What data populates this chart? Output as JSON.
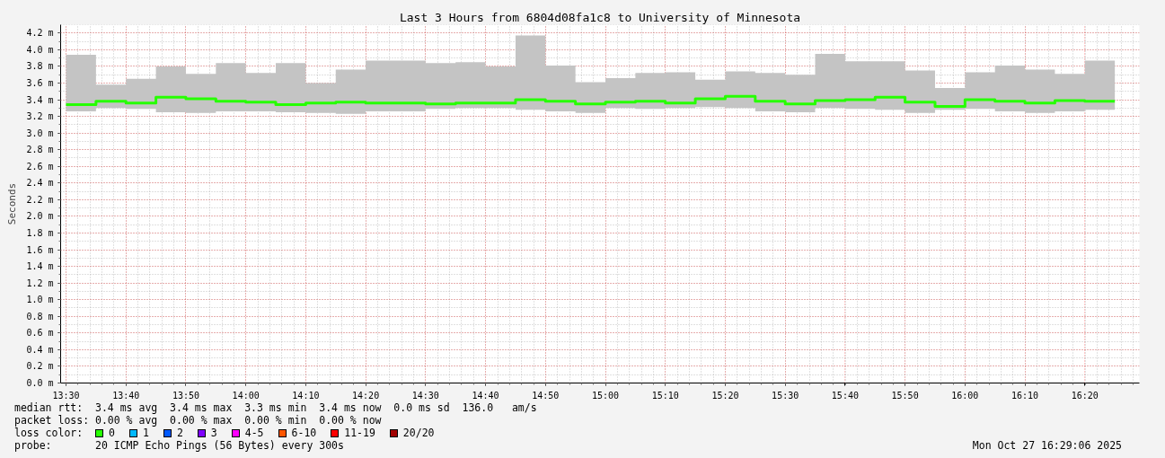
{
  "chart_data": {
    "type": "step",
    "title": "Last 3 Hours from 6804d08fa1c8 to University of Minnesota",
    "ylabel": "Seconds",
    "legend_title": "loss color:",
    "x": [
      13.5,
      13.5833,
      13.6667,
      13.75,
      13.8333,
      13.9167,
      14.0,
      14.0833,
      14.1667,
      14.25,
      14.3333,
      14.4167,
      14.5,
      14.5833,
      14.6667,
      14.75,
      14.8333,
      14.9167,
      15.0,
      15.0833,
      15.1667,
      15.25,
      15.3333,
      15.4167,
      15.5,
      15.5833,
      15.6667,
      15.75,
      15.8333,
      15.9167,
      16.0,
      16.0833,
      16.1667,
      16.25,
      16.3333,
      16.4167
    ],
    "series": [
      {
        "name": "0",
        "color": "#26ff00",
        "values": [
          3.34,
          3.38,
          3.36,
          3.43,
          3.41,
          3.38,
          3.37,
          3.34,
          3.36,
          3.37,
          3.36,
          3.36,
          3.35,
          3.36,
          3.36,
          3.4,
          3.38,
          3.35,
          3.37,
          3.38,
          3.36,
          3.41,
          3.44,
          3.38,
          3.35,
          3.39,
          3.4,
          3.43,
          3.37,
          3.32,
          3.4,
          3.38,
          3.36,
          3.39,
          3.38,
          3.38
        ],
        "lower": [
          3.26,
          3.3,
          3.29,
          3.25,
          3.24,
          3.26,
          3.26,
          3.25,
          3.24,
          3.23,
          3.26,
          3.26,
          3.29,
          3.3,
          3.3,
          3.28,
          3.26,
          3.24,
          3.3,
          3.29,
          3.3,
          3.31,
          3.3,
          3.26,
          3.25,
          3.3,
          3.29,
          3.28,
          3.24,
          3.28,
          3.29,
          3.26,
          3.24,
          3.26,
          3.28,
          3.28
        ],
        "upper": [
          3.94,
          3.58,
          3.65,
          3.8,
          3.71,
          3.84,
          3.72,
          3.84,
          3.6,
          3.76,
          3.87,
          3.87,
          3.84,
          3.85,
          3.8,
          4.17,
          3.81,
          3.61,
          3.66,
          3.72,
          3.73,
          3.64,
          3.74,
          3.72,
          3.7,
          3.95,
          3.86,
          3.86,
          3.75,
          3.54,
          3.73,
          3.81,
          3.76,
          3.71,
          3.87,
          3.87
        ]
      },
      {
        "name": "1",
        "color": "#00b8ff",
        "values": [
          null,
          null,
          null,
          null,
          null,
          null,
          null,
          null,
          null,
          null,
          null,
          null,
          null,
          null,
          null,
          null,
          null,
          null,
          null,
          null,
          null,
          null,
          null,
          null,
          null,
          null,
          null,
          null,
          null,
          null,
          null,
          null,
          null,
          null,
          null,
          null
        ]
      },
      {
        "name": "2",
        "color": "#0059ff",
        "values": [
          null,
          null,
          null,
          null,
          null,
          null,
          null,
          null,
          null,
          null,
          null,
          null,
          null,
          null,
          null,
          null,
          null,
          null,
          null,
          null,
          null,
          null,
          null,
          null,
          null,
          null,
          null,
          null,
          null,
          null,
          null,
          null,
          null,
          null,
          null,
          null
        ]
      },
      {
        "name": "3",
        "color": "#7e00ff",
        "values": [
          null,
          null,
          null,
          null,
          null,
          null,
          null,
          null,
          null,
          null,
          null,
          null,
          null,
          null,
          null,
          null,
          null,
          null,
          null,
          null,
          null,
          null,
          null,
          null,
          null,
          null,
          null,
          null,
          null,
          null,
          null,
          null,
          null,
          null,
          null,
          null
        ]
      },
      {
        "name": "4-5",
        "color": "#ff00ff",
        "values": [
          null,
          null,
          null,
          null,
          null,
          null,
          null,
          null,
          null,
          null,
          null,
          null,
          null,
          null,
          null,
          null,
          null,
          null,
          null,
          null,
          null,
          null,
          null,
          null,
          null,
          null,
          null,
          null,
          null,
          null,
          null,
          null,
          null,
          null,
          null,
          null
        ]
      },
      {
        "name": "6-10",
        "color": "#ff5500",
        "values": [
          null,
          null,
          null,
          null,
          null,
          null,
          null,
          null,
          null,
          null,
          null,
          null,
          null,
          null,
          null,
          null,
          null,
          null,
          null,
          null,
          null,
          null,
          null,
          null,
          null,
          null,
          null,
          null,
          null,
          null,
          null,
          null,
          null,
          null,
          null,
          null
        ]
      },
      {
        "name": "11-19",
        "color": "#ff0000",
        "values": [
          null,
          null,
          null,
          null,
          null,
          null,
          null,
          null,
          null,
          null,
          null,
          null,
          null,
          null,
          null,
          null,
          null,
          null,
          null,
          null,
          null,
          null,
          null,
          null,
          null,
          null,
          null,
          null,
          null,
          null,
          null,
          null,
          null,
          null,
          null,
          null
        ]
      },
      {
        "name": "20/20",
        "color": "#a10000",
        "values": [
          null,
          null,
          null,
          null,
          null,
          null,
          null,
          null,
          null,
          null,
          null,
          null,
          null,
          null,
          null,
          null,
          null,
          null,
          null,
          null,
          null,
          null,
          null,
          null,
          null,
          null,
          null,
          null,
          null,
          null,
          null,
          null,
          null,
          null,
          null,
          null
        ]
      }
    ],
    "xlim": [
      13.485,
      16.485
    ],
    "xticks": [
      {
        "value": 13.5,
        "label": "13:30"
      },
      {
        "value": 13.6667,
        "label": "13:40"
      },
      {
        "value": 13.8333,
        "label": "13:50"
      },
      {
        "value": 14.0,
        "label": "14:00"
      },
      {
        "value": 14.1667,
        "label": "14:10"
      },
      {
        "value": 14.3333,
        "label": "14:20"
      },
      {
        "value": 14.5,
        "label": "14:30"
      },
      {
        "value": 14.6667,
        "label": "14:40"
      },
      {
        "value": 14.8333,
        "label": "14:50"
      },
      {
        "value": 15.0,
        "label": "15:00"
      },
      {
        "value": 15.1667,
        "label": "15:10"
      },
      {
        "value": 15.3333,
        "label": "15:20"
      },
      {
        "value": 15.5,
        "label": "15:30"
      },
      {
        "value": 15.6667,
        "label": "15:40"
      },
      {
        "value": 15.8333,
        "label": "15:50"
      },
      {
        "value": 16.0,
        "label": "16:00"
      },
      {
        "value": 16.1667,
        "label": "16:10"
      },
      {
        "value": 16.3333,
        "label": "16:20"
      }
    ],
    "ylim": [
      0,
      4.3
    ],
    "yticks": [
      {
        "value": 0,
        "label": "0.0 m"
      },
      {
        "value": 0.2,
        "label": "0.2 m"
      },
      {
        "value": 0.4,
        "label": "0.4 m"
      },
      {
        "value": 0.6,
        "label": "0.6 m"
      },
      {
        "value": 0.8,
        "label": "0.8 m"
      },
      {
        "value": 1.0,
        "label": "1.0 m"
      },
      {
        "value": 1.2,
        "label": "1.2 m"
      },
      {
        "value": 1.4,
        "label": "1.4 m"
      },
      {
        "value": 1.6,
        "label": "1.6 m"
      },
      {
        "value": 1.8,
        "label": "1.8 m"
      },
      {
        "value": 2.0,
        "label": "2.0 m"
      },
      {
        "value": 2.2,
        "label": "2.2 m"
      },
      {
        "value": 2.4,
        "label": "2.4 m"
      },
      {
        "value": 2.6,
        "label": "2.6 m"
      },
      {
        "value": 2.8,
        "label": "2.8 m"
      },
      {
        "value": 3.0,
        "label": "3.0 m"
      },
      {
        "value": 3.2,
        "label": "3.2 m"
      },
      {
        "value": 3.4,
        "label": "3.4 m"
      },
      {
        "value": 3.6,
        "label": "3.6 m"
      },
      {
        "value": 3.8,
        "label": "3.8 m"
      },
      {
        "value": 4.0,
        "label": "4.0 m"
      },
      {
        "value": 4.2,
        "label": "4.2 m"
      }
    ],
    "grid": true,
    "legend": "bottom",
    "annotations": [
      "median rtt:  3.4 ms avg  3.4 ms max  3.3 ms min  3.4 ms now  0.0 ms sd  136.0   am/s",
      "packet loss: 0.00 % avg  0.00 % max  0.00 % min  0.00 % now",
      "probe:       20 ICMP Echo Pings (56 Bytes) every 300s",
      "Mon Oct 27 16:29:06 2025"
    ]
  }
}
